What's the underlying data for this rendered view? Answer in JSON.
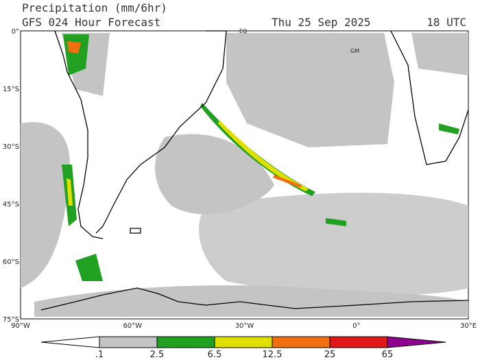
{
  "header": {
    "title": "Precipitation (mm/6hr)",
    "subtitle": "GFS 024 Hour Forecast",
    "date": "Thu 25 Sep 2025",
    "time": "18 UTC"
  },
  "map": {
    "lat_labels": [
      "0°",
      "15°S",
      "30°S",
      "45°S",
      "60°S",
      "75°S"
    ],
    "lon_labels": [
      "90°W",
      "60°W",
      "30°W",
      "0°",
      "30°E"
    ],
    "markers": [
      "EQ",
      "GM"
    ]
  },
  "legend": {
    "labels": [
      ".1",
      "2.5",
      "6.5",
      "12.5",
      "25",
      "65"
    ]
  }
}
